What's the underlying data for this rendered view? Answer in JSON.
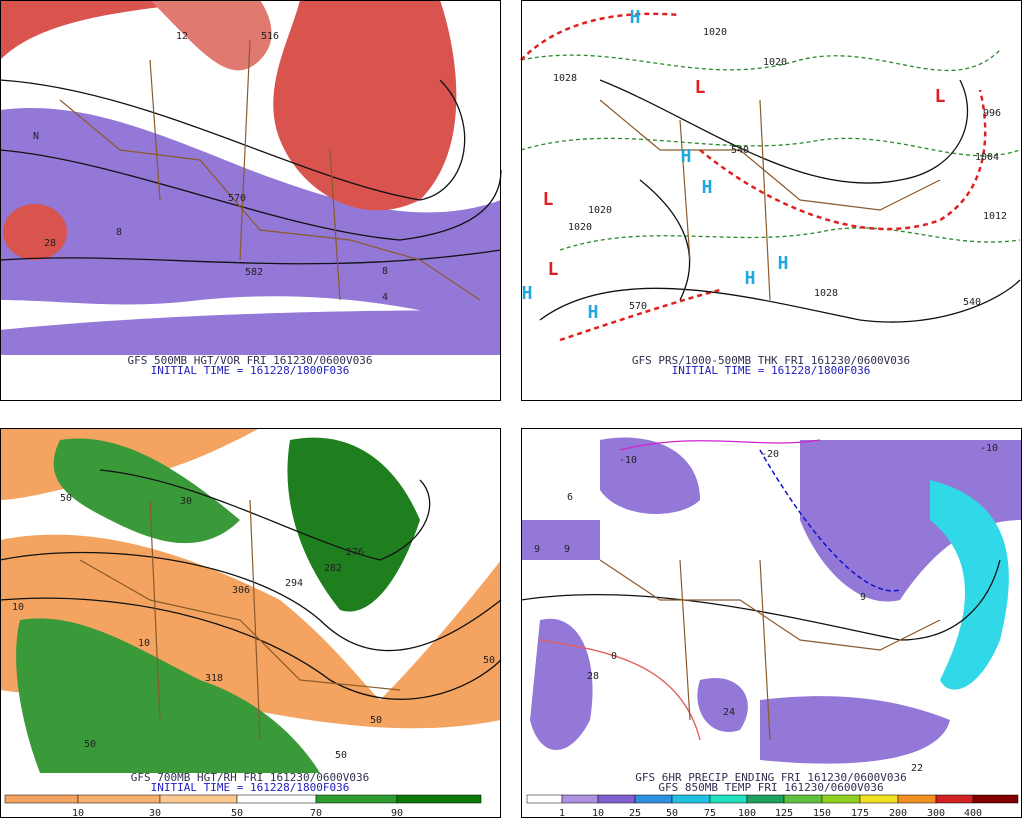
{
  "panels": [
    {
      "caption": "GFS 500MB HGT/VOR FRI 161230/0600V036",
      "initial_time": "INITIAL TIME = 161228/1800F036",
      "map_labels": [
        "12",
        "516",
        "570",
        "582",
        "N",
        "8",
        "8",
        "4",
        "28"
      ]
    },
    {
      "caption": "GFS PRS/1000-500MB THK FRI 161230/0600V036",
      "initial_time": "INITIAL TIME = 161228/1800F036",
      "map_labels": [
        "1020",
        "1028",
        "1020",
        "1020",
        "1020",
        "1004",
        "996",
        "1012",
        "1028",
        "540",
        "570",
        "540",
        "L",
        "L",
        "L",
        "L",
        "H",
        "H",
        "H",
        "H",
        "H",
        "H",
        "H"
      ]
    },
    {
      "caption": "GFS 700MB HGT/RH FRI 161230/0600V036",
      "initial_time": "INITIAL TIME = 161228/1800F036",
      "map_labels": [
        "50",
        "30",
        "276",
        "282",
        "294",
        "306",
        "318",
        "10",
        "10",
        "50",
        "50",
        "50",
        "50"
      ],
      "colorbar": [
        "10",
        "30",
        "50",
        "70",
        "90"
      ]
    },
    {
      "caption": "GFS 6HR PRECIP ENDING FRI 161230/0600V036",
      "initial_time": "GFS 850MB TEMP FRI 161230/0600V036",
      "map_labels": [
        "6",
        "9",
        "9",
        "28",
        "24",
        "22",
        "-20",
        "-10",
        "-10",
        "9",
        "0"
      ],
      "colorbar": [
        "1",
        "10",
        "25",
        "50",
        "75",
        "100",
        "125",
        "150",
        "175",
        "200",
        "300",
        "400"
      ]
    }
  ]
}
